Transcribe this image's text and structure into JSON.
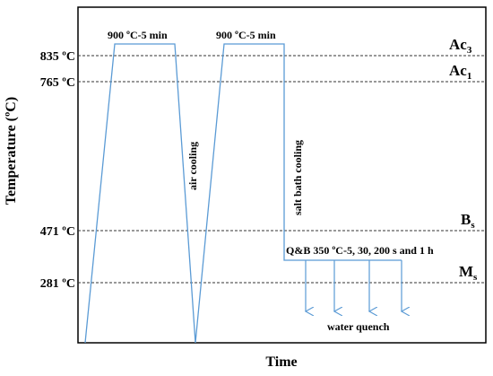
{
  "axes": {
    "xlabel": "Time",
    "ylabel": "Temperature (ºC)"
  },
  "temperatures": [
    {
      "id": "ac3",
      "value_label": "835 ºC",
      "phase_main": "Ac",
      "phase_sub": "3",
      "value": 835
    },
    {
      "id": "ac1",
      "value_label": "765 ºC",
      "phase_main": "Ac",
      "phase_sub": "1",
      "value": 765
    },
    {
      "id": "bs",
      "value_label": "471 ºC",
      "phase_main": "B",
      "phase_sub": "s",
      "value": 471
    },
    {
      "id": "ms",
      "value_label": "281 ºC",
      "phase_main": "M",
      "phase_sub": "s",
      "value": 281
    }
  ],
  "annotations": {
    "hold1": "900 ºC-5 min",
    "hold2": "900 ºC-5 min",
    "air_cooling": "air cooling",
    "salt_bath": "salt bath cooling",
    "qb": "Q&B 350 ºC-5, 30, 200 s and 1 h",
    "water_quench": "water quench"
  },
  "colors": {
    "profile": "#5b9bd5",
    "frame": "#000000",
    "reference_lines": "#333333"
  }
}
